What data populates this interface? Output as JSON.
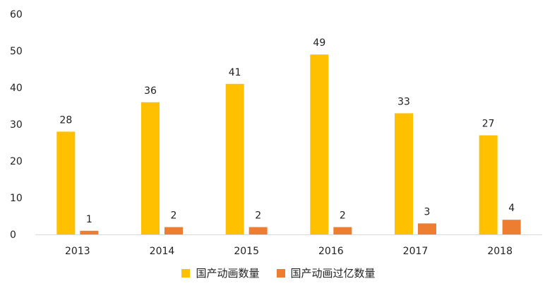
{
  "chart_data": {
    "type": "bar",
    "categories": [
      "2013",
      "2014",
      "2015",
      "2016",
      "2017",
      "2018"
    ],
    "series": [
      {
        "name": "国产动画数量",
        "values": [
          28,
          36,
          41,
          49,
          33,
          27
        ],
        "color": "#FFC000"
      },
      {
        "name": "国产动画过亿数量",
        "values": [
          1,
          2,
          2,
          2,
          3,
          4
        ],
        "color": "#ED7D31"
      }
    ],
    "yticks": [
      "0",
      "10",
      "20",
      "30",
      "40",
      "50",
      "60"
    ],
    "ylim": [
      0,
      60
    ],
    "title": "",
    "xlabel": "",
    "ylabel": "",
    "grid": false,
    "legend_position": "bottom",
    "data_labels": true
  }
}
